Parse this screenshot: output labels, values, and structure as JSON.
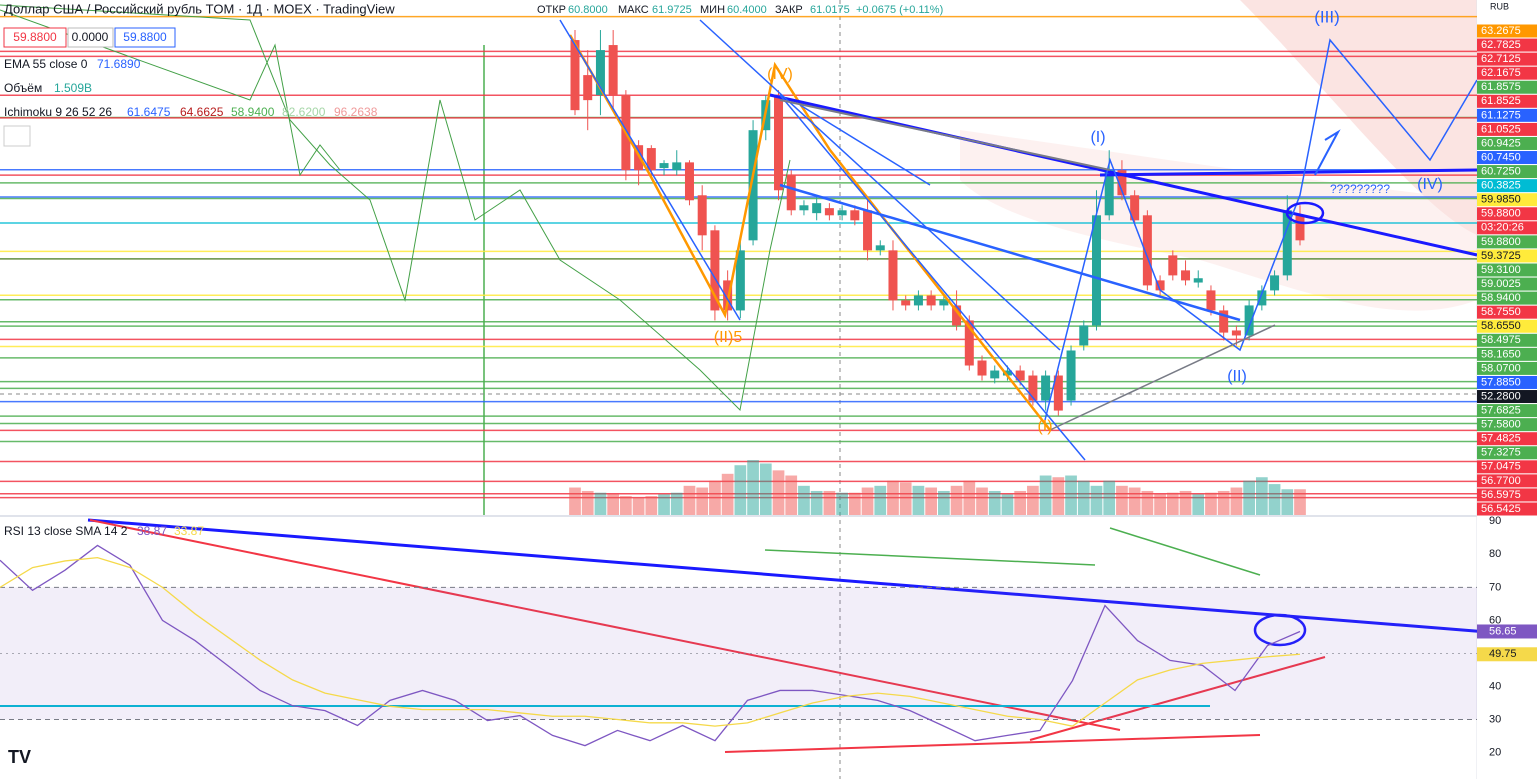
{
  "header": {
    "symbol": "Доллар США / Российский рубль TOM · 1Д · MOEX · TradingView",
    "ohlc": [
      "ОТКР",
      "60.8000",
      "МАКС",
      "61.9725",
      "МИН",
      "60.4000",
      "ЗАКР",
      "61.0175",
      "+0.0675 (+0.11%)"
    ],
    "price_boxes": [
      "59.8800",
      "0.0000",
      "59.8800"
    ],
    "ema": [
      "EMA 55 close 0",
      "71.6890"
    ],
    "volume": [
      "Объём",
      "1.509B"
    ],
    "ichimoku": [
      "Ichimoku 9 26 52 26",
      "61.6475",
      "64.6625",
      "58.9400",
      "82.6200",
      "96.2638"
    ],
    "currency": "RUB"
  },
  "chart_data": [
    {
      "type": "candlestick",
      "ylim": [
        56.3,
        63.5
      ],
      "up_color": "#26a69a",
      "down_color": "#ef5350",
      "ohlc": [
        [
          62.94,
          63.08,
          61.89,
          61.96
        ],
        [
          62.45,
          62.8,
          61.68,
          62.1
        ],
        [
          62.17,
          63.08,
          61.89,
          62.8
        ],
        [
          62.87,
          63.08,
          61.96,
          62.17
        ],
        [
          62.17,
          62.24,
          60.98,
          61.12
        ],
        [
          61.47,
          61.54,
          60.91,
          61.12
        ],
        [
          61.43,
          61.47,
          61.05,
          61.12
        ],
        [
          61.15,
          61.26,
          61.05,
          61.22
        ],
        [
          61.12,
          61.4,
          61.05,
          61.23
        ],
        [
          61.23,
          61.26,
          60.63,
          60.7
        ],
        [
          60.77,
          60.91,
          60.0,
          60.21
        ],
        [
          60.28,
          60.35,
          59.02,
          59.16
        ],
        [
          59.58,
          59.72,
          59.02,
          59.16
        ],
        [
          59.16,
          60.14,
          59.05,
          60.0
        ],
        [
          60.14,
          61.82,
          60.07,
          61.68
        ],
        [
          61.68,
          62.17,
          61.54,
          62.1
        ],
        [
          62.17,
          62.24,
          60.7,
          60.84
        ],
        [
          61.05,
          61.12,
          60.49,
          60.56
        ],
        [
          60.56,
          60.7,
          60.49,
          60.63
        ],
        [
          60.52,
          60.77,
          60.42,
          60.66
        ],
        [
          60.59,
          60.66,
          60.42,
          60.49
        ],
        [
          60.49,
          60.63,
          60.42,
          60.56
        ],
        [
          60.56,
          60.63,
          60.35,
          60.42
        ],
        [
          60.56,
          60.7,
          59.86,
          60.0
        ],
        [
          60.0,
          60.14,
          59.93,
          60.07
        ],
        [
          60.0,
          60.14,
          59.16,
          59.3
        ],
        [
          59.3,
          59.37,
          59.16,
          59.23
        ],
        [
          59.23,
          59.44,
          59.16,
          59.37
        ],
        [
          59.37,
          59.44,
          59.16,
          59.23
        ],
        [
          59.23,
          59.37,
          59.16,
          59.3
        ],
        [
          59.23,
          59.44,
          58.88,
          58.95
        ],
        [
          59.02,
          59.09,
          58.32,
          58.39
        ],
        [
          58.46,
          58.53,
          58.18,
          58.25
        ],
        [
          58.21,
          58.39,
          58.14,
          58.32
        ],
        [
          58.25,
          58.39,
          58.18,
          58.32
        ],
        [
          58.32,
          58.39,
          58.11,
          58.18
        ],
        [
          58.25,
          58.32,
          57.83,
          57.9
        ],
        [
          57.9,
          58.32,
          57.76,
          58.25
        ],
        [
          58.25,
          58.32,
          57.69,
          57.76
        ],
        [
          57.9,
          58.67,
          57.83,
          58.6
        ],
        [
          58.67,
          59.02,
          58.6,
          58.95
        ],
        [
          58.95,
          60.84,
          58.88,
          60.49
        ],
        [
          60.49,
          61.4,
          60.42,
          61.12
        ],
        [
          61.12,
          61.26,
          60.7,
          60.77
        ],
        [
          60.77,
          60.84,
          60.35,
          60.42
        ],
        [
          60.49,
          60.56,
          59.44,
          59.51
        ],
        [
          59.58,
          59.65,
          59.37,
          59.44
        ],
        [
          59.93,
          60.0,
          59.58,
          59.65
        ],
        [
          59.72,
          59.86,
          59.51,
          59.58
        ],
        [
          59.55,
          59.72,
          59.48,
          59.61
        ],
        [
          59.44,
          59.51,
          59.09,
          59.16
        ],
        [
          59.16,
          59.23,
          58.74,
          58.85
        ],
        [
          58.88,
          58.95,
          58.67,
          58.81
        ],
        [
          58.81,
          59.3,
          58.74,
          59.23
        ],
        [
          59.23,
          59.51,
          59.16,
          59.44
        ],
        [
          59.44,
          59.72,
          59.37,
          59.65
        ],
        [
          59.65,
          60.77,
          59.58,
          60.56
        ],
        [
          60.49,
          60.63,
          60.07,
          60.14
        ]
      ],
      "volume": [
        1.6,
        1.4,
        1.3,
        1.2,
        1.1,
        1.0,
        1.1,
        1.2,
        1.3,
        1.7,
        1.6,
        2.0,
        2.4,
        2.9,
        3.2,
        3.0,
        2.6,
        2.3,
        1.7,
        1.4,
        1.4,
        1.3,
        1.3,
        1.6,
        1.7,
        2.0,
        1.9,
        1.7,
        1.6,
        1.4,
        1.7,
        2.0,
        1.6,
        1.4,
        1.2,
        1.4,
        1.7,
        2.3,
        2.2,
        2.3,
        2.0,
        1.7,
        2.0,
        1.7,
        1.6,
        1.4,
        1.2,
        1.3,
        1.4,
        1.2,
        1.3,
        1.4,
        1.6,
        2.0,
        2.2,
        1.8,
        1.5,
        1.5
      ],
      "volume_ylim": [
        0,
        30
      ],
      "levels": [
        {
          "value": 63.2675,
          "color": "#ff9800"
        },
        {
          "value": 62.7825,
          "color": "#f23645"
        },
        {
          "value": 62.7125,
          "color": "#f23645"
        },
        {
          "value": 62.1675,
          "color": "#f23645"
        },
        {
          "value": 61.8575,
          "color": "#4caf50"
        },
        {
          "value": 61.8525,
          "color": "#f23645"
        },
        {
          "value": 61.1275,
          "color": "#2962ff"
        },
        {
          "value": 61.0525,
          "color": "#f23645"
        },
        {
          "value": 60.9425,
          "color": "#4caf50"
        },
        {
          "value": 60.745,
          "label": "60.7450",
          "color": "#2962ff"
        },
        {
          "value": 60.725,
          "label": "60.7250",
          "color": "#4caf50"
        },
        {
          "value": 60.3825,
          "color": "#00bcd4"
        },
        {
          "value": 59.985,
          "label": "59.9850",
          "color": "#ffeb3b"
        },
        {
          "value": 59.88,
          "label": "59.8800",
          "color": "#f23645"
        },
        {
          "value": 59.88,
          "label": "59.8800",
          "color": "#4caf50"
        },
        {
          "value": 59.3725,
          "color": "#ffeb3b"
        },
        {
          "value": 59.31,
          "label": "59.3100",
          "color": "#4caf50"
        },
        {
          "value": 59.0025,
          "color": "#4caf50"
        },
        {
          "value": 58.94,
          "label": "58.9400",
          "color": "#4caf50"
        },
        {
          "value": 58.755,
          "label": "58.7550",
          "color": "#f23645"
        },
        {
          "value": 58.655,
          "label": "58.6550",
          "color": "#ffeb3b"
        },
        {
          "value": 58.4975,
          "color": "#4caf50"
        },
        {
          "value": 58.165,
          "label": "58.1650",
          "color": "#4caf50"
        },
        {
          "value": 58.07,
          "label": "58.0700",
          "color": "#4caf50"
        },
        {
          "value": 57.885,
          "label": "57.8850",
          "color": "#2962ff"
        },
        {
          "value": 57.6825,
          "color": "#4caf50"
        },
        {
          "value": 57.58,
          "label": "57.5800",
          "color": "#4caf50"
        },
        {
          "value": 57.4825,
          "color": "#f23645"
        },
        {
          "value": 57.3275,
          "color": "#4caf50"
        },
        {
          "value": 57.0475,
          "color": "#f23645"
        },
        {
          "value": 56.77,
          "label": "56.7700",
          "color": "#f23645"
        },
        {
          "value": 56.5975,
          "color": "#f23645"
        },
        {
          "value": 56.5425,
          "color": "#f23645"
        }
      ],
      "countdown": "03:20:26",
      "crosshair_label": "52.2800",
      "annotations": [
        "(III)",
        "(IV)",
        "(I)",
        "(II)5",
        "(IV)",
        "(II)",
        "?????????",
        "(I)"
      ]
    },
    {
      "type": "line",
      "title": "RSI 13 close SMA 14 2",
      "legend_values": [
        "38.87",
        "33.87"
      ],
      "ylim": [
        12,
        91
      ],
      "yticks": [
        90,
        80,
        70,
        60,
        50,
        40,
        30,
        20
      ],
      "band": [
        30,
        70
      ],
      "series": [
        {
          "name": "RSI",
          "color": "#7e57c2",
          "values": [
            78.2,
            69.1,
            75.2,
            82.7,
            76.7,
            60.0,
            53.9,
            46.4,
            38.8,
            34.2,
            32.7,
            28.2,
            35.8,
            38.8,
            35.8,
            29.7,
            31.2,
            25.2,
            22.1,
            26.7,
            23.6,
            28.2,
            23.6,
            35.8,
            38.8,
            38.8,
            37.3,
            35.8,
            32.7,
            28.2,
            23.6,
            25.2,
            26.7,
            41.8,
            64.5,
            53.9,
            47.9,
            46.4,
            38.8,
            52.4,
            56.65
          ],
          "last_label": "56.65"
        },
        {
          "name": "SMA",
          "color": "#f5d94a",
          "values": [
            70,
            76,
            78,
            79,
            76,
            70,
            62,
            55,
            48,
            42,
            38,
            36,
            34,
            33,
            33,
            33,
            32,
            31,
            31,
            30,
            29,
            29,
            28,
            29,
            32,
            35,
            37,
            38,
            37,
            35,
            33,
            31,
            30,
            28,
            35,
            42,
            45,
            47,
            48,
            49,
            49.75
          ],
          "last_label": "49.75"
        }
      ]
    }
  ]
}
